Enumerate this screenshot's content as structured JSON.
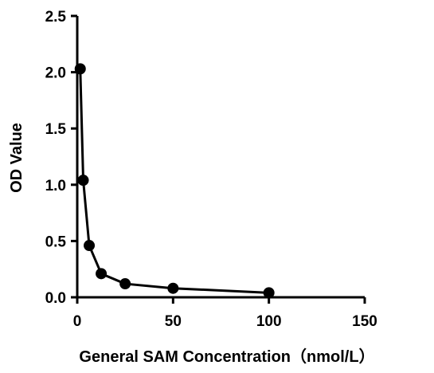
{
  "chart_data": {
    "type": "line",
    "title": "",
    "xlabel": "General SAM Concentration（nmol/L）",
    "ylabel": "OD Value",
    "xlim": [
      0,
      150
    ],
    "ylim": [
      0,
      2.5
    ],
    "x_ticks": [
      "0",
      "50",
      "100",
      "150"
    ],
    "y_ticks": [
      "0.0",
      "0.5",
      "1.0",
      "1.5",
      "2.0",
      "2.5"
    ],
    "grid": false,
    "legend": "none",
    "series": [
      {
        "x": [
          1.5625,
          3.125,
          6.25,
          12.5,
          25,
          50,
          100
        ],
        "y": [
          2.03,
          1.04,
          0.46,
          0.21,
          0.12,
          0.08,
          0.04
        ]
      }
    ],
    "colors": {
      "line": "#000000",
      "marker": "#000000",
      "axis": "#000000"
    }
  }
}
